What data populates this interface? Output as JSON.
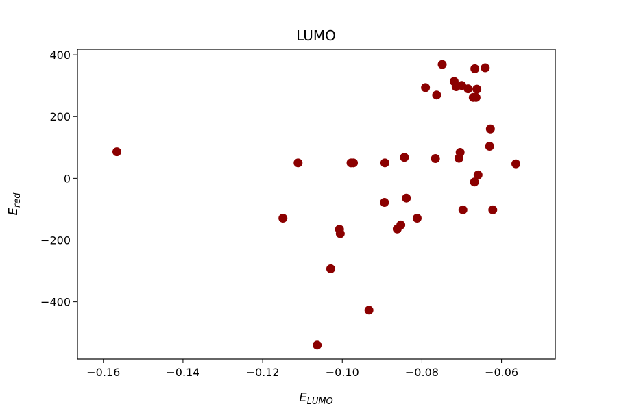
{
  "chart_data": {
    "type": "scatter",
    "title": "LUMO",
    "xlabel_main": "E",
    "xlabel_sub": "LUMO",
    "ylabel_main": "E",
    "ylabel_sub": "red",
    "xlim": [
      -0.1665,
      -0.0465
    ],
    "ylim": [
      -585,
      418
    ],
    "xticks": [
      -0.16,
      -0.14,
      -0.12,
      -0.1,
      -0.08,
      -0.06
    ],
    "xtick_labels": [
      "−0.16",
      "−0.14",
      "−0.12",
      "−0.10",
      "−0.08",
      "−0.06"
    ],
    "yticks": [
      -400,
      -200,
      0,
      200,
      400
    ],
    "ytick_labels": [
      "−400",
      "−200",
      "0",
      "200",
      "400"
    ],
    "grid": false,
    "marker_color": "#8b0000",
    "points": [
      {
        "x": -0.1566,
        "y": 86
      },
      {
        "x": -0.1111,
        "y": 50
      },
      {
        "x": -0.1149,
        "y": -129
      },
      {
        "x": -0.1063,
        "y": -540
      },
      {
        "x": -0.1029,
        "y": -293
      },
      {
        "x": -0.1007,
        "y": -165
      },
      {
        "x": -0.1005,
        "y": -179
      },
      {
        "x": -0.0978,
        "y": 50
      },
      {
        "x": -0.0972,
        "y": 50
      },
      {
        "x": -0.0933,
        "y": -427
      },
      {
        "x": -0.0893,
        "y": 50
      },
      {
        "x": -0.0894,
        "y": -78
      },
      {
        "x": -0.0862,
        "y": -164
      },
      {
        "x": -0.0853,
        "y": -151
      },
      {
        "x": -0.0844,
        "y": 68
      },
      {
        "x": -0.0839,
        "y": -64
      },
      {
        "x": -0.0812,
        "y": -129
      },
      {
        "x": -0.0791,
        "y": 294
      },
      {
        "x": -0.0766,
        "y": 64
      },
      {
        "x": -0.0763,
        "y": 270
      },
      {
        "x": -0.0749,
        "y": 369
      },
      {
        "x": -0.0719,
        "y": 314
      },
      {
        "x": -0.0714,
        "y": 297
      },
      {
        "x": -0.0707,
        "y": 65
      },
      {
        "x": -0.0704,
        "y": 84
      },
      {
        "x": -0.07,
        "y": 301
      },
      {
        "x": -0.0697,
        "y": -102
      },
      {
        "x": -0.0684,
        "y": 290
      },
      {
        "x": -0.0671,
        "y": 262
      },
      {
        "x": -0.0668,
        "y": -12
      },
      {
        "x": -0.0667,
        "y": 355
      },
      {
        "x": -0.0664,
        "y": 262
      },
      {
        "x": -0.0662,
        "y": 289
      },
      {
        "x": -0.0659,
        "y": 11
      },
      {
        "x": -0.0641,
        "y": 358
      },
      {
        "x": -0.063,
        "y": 104
      },
      {
        "x": -0.0628,
        "y": 160
      },
      {
        "x": -0.0622,
        "y": -102
      },
      {
        "x": -0.0564,
        "y": 47
      }
    ]
  }
}
